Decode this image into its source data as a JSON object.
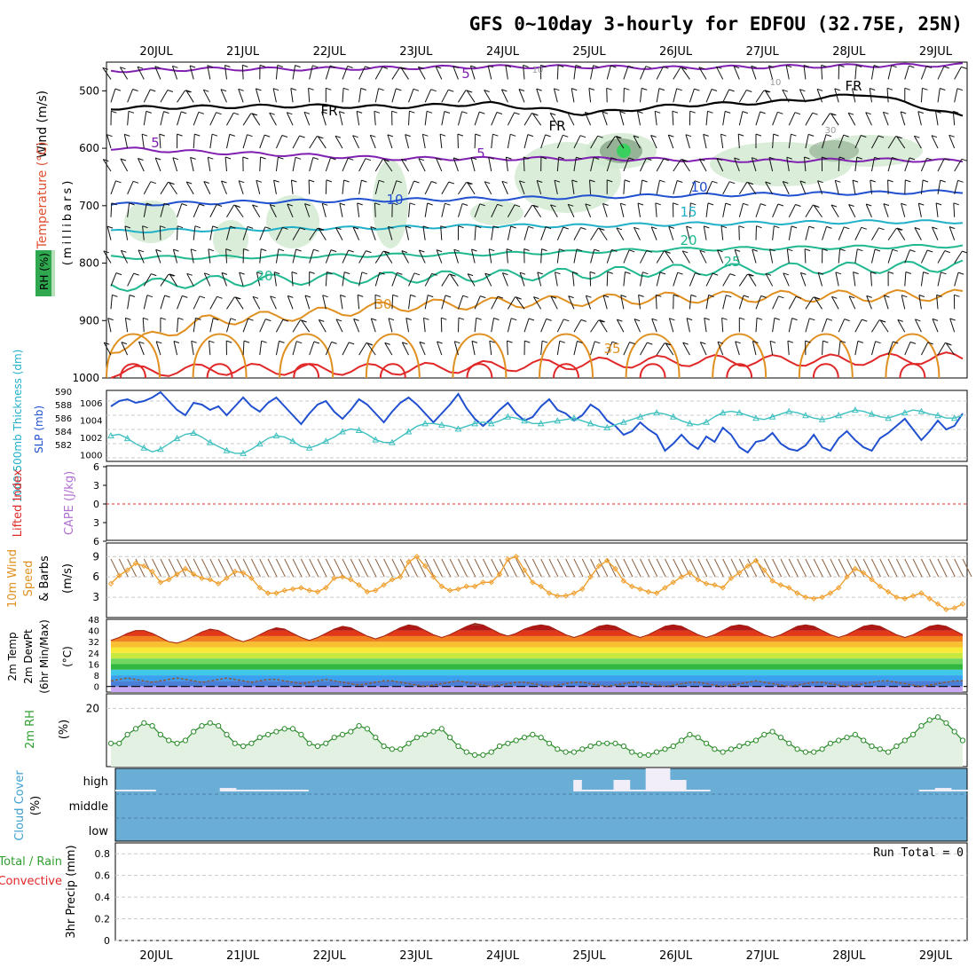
{
  "title": "GFS 0~10day 3-hourly for EDFOU (32.75E, 25N)",
  "days": [
    "20JUL",
    "21JUL",
    "22JUL",
    "23JUL",
    "24JUL",
    "25JUL",
    "26JUL",
    "27JUL",
    "28JUL",
    "29JUL"
  ],
  "colors": {
    "purple": "#8020b0",
    "blue": "#2050d0",
    "cyan": "#20b0c8",
    "teal": "#20b890",
    "orange": "#e09020",
    "red": "#e02828",
    "lightblue": "#40c0c0",
    "green": "#30a030",
    "cloud": "#6aaed6",
    "rh_fill": "#e3f1e3",
    "rh_line": "#2a8a2a",
    "wind": "#f0a030",
    "barb": "#8a6040"
  },
  "chart_data": [
    {
      "type": "contour",
      "panel": "upper-air",
      "ylabel_lines": [
        {
          "text": "Wind (m/s)",
          "color": "#000000"
        },
        {
          "text": "Temperature (°C)",
          "color": "#e05030"
        },
        {
          "text": "(millibars)",
          "color": "#000000"
        }
      ],
      "rh_label": "RH (%)",
      "y_ticks": [
        500,
        600,
        700,
        800,
        900,
        1000
      ],
      "ylim": [
        450,
        1000
      ],
      "contour_labels": [
        "5",
        "5",
        "5",
        "10",
        "10",
        "15",
        "20",
        "20",
        "25",
        "30",
        "35",
        "FR",
        "FR",
        "FR",
        "10",
        "10",
        "30"
      ],
      "isotherms": [
        {
          "label": "5",
          "color": "purple",
          "levels": [
            465,
            462,
            462,
            460,
            458,
            458,
            460,
            458,
            456,
            455
          ]
        },
        {
          "label": "FR",
          "color": "black",
          "levels": [
            530,
            528,
            526,
            528,
            522,
            540,
            525,
            520,
            505,
            545
          ]
        },
        {
          "label": "5",
          "color": "purple",
          "levels": [
            600,
            607,
            612,
            618,
            618,
            618,
            620,
            622,
            620,
            622
          ]
        },
        {
          "label": "10",
          "color": "blue",
          "levels": [
            698,
            695,
            692,
            690,
            688,
            685,
            682,
            680,
            678,
            675
          ]
        },
        {
          "label": "15",
          "color": "cyan",
          "levels": [
            745,
            742,
            740,
            738,
            735,
            735,
            732,
            730,
            728,
            728
          ]
        },
        {
          "label": "20",
          "color": "teal",
          "levels": [
            790,
            790,
            788,
            786,
            784,
            780,
            776,
            774,
            772,
            770
          ]
        },
        {
          "label": "25",
          "color": "teal",
          "levels": [
            840,
            832,
            828,
            825,
            822,
            818,
            812,
            810,
            808,
            805
          ]
        },
        {
          "label": "30",
          "color": "orange",
          "levels": [
            950,
            900,
            890,
            875,
            870,
            865,
            860,
            858,
            857,
            856
          ]
        },
        {
          "label": "35",
          "color": "red",
          "levels": [
            990,
            985,
            985,
            985,
            980,
            975,
            970,
            970,
            968,
            965
          ]
        }
      ]
    },
    {
      "type": "line",
      "panel": "slp-thickness",
      "ylabel_left": "1000-500mb Thickness (dm)",
      "ylabel_right": "SLP (mb)",
      "left_ticks": [
        "590",
        "588",
        "586",
        "584",
        "582"
      ],
      "right_ticks": [
        "1006",
        "1004",
        "1002",
        "1000"
      ],
      "ylim_slp": [
        999,
        1007
      ],
      "series": [
        {
          "name": "SLP (mb)",
          "color": "blue",
          "values": [
            1005.2,
            1005.8,
            1006.0,
            1005.6,
            1005.8,
            1006.2,
            1006.8,
            1005.8,
            1004.8,
            1004.2,
            1005.6,
            1005.4,
            1004.8,
            1005.2,
            1004.2,
            1005.2,
            1006.2,
            1005.2,
            1004.6,
            1005.6,
            1006.2,
            1005.2,
            1004.2,
            1003.2,
            1004.4,
            1005.4,
            1005.8,
            1004.6,
            1003.8,
            1004.8,
            1006.0,
            1005.4,
            1004.4,
            1003.4,
            1004.6,
            1005.6,
            1006.2,
            1005.4,
            1004.4,
            1003.4,
            1004.4,
            1005.4,
            1006.6,
            1005.0,
            1003.8,
            1003.0,
            1003.8,
            1004.8,
            1005.6,
            1004.4,
            1003.6,
            1004.0,
            1005.2,
            1006.0,
            1004.8,
            1004.4,
            1003.6,
            1004.2,
            1005.4,
            1004.8,
            1003.6,
            1003.0,
            1002.0,
            1002.4,
            1003.4,
            1002.6,
            1002.0,
            1000.2,
            1001.0,
            1002.0,
            1001.0,
            1000.4,
            1001.8,
            1001.2,
            1002.8,
            1002.0,
            1000.6,
            1000.0,
            1001.2,
            1001.4,
            1002.2,
            1001.0,
            1000.4,
            1000.2,
            1000.8,
            1002.0,
            1000.6,
            1000.2,
            1001.6,
            1002.4,
            1001.4,
            1000.6,
            1000.2,
            1001.6,
            1002.2,
            1003.0,
            1003.8,
            1002.6,
            1001.4,
            1002.4,
            1003.6,
            1002.6,
            1003.0,
            1004.4
          ]
        },
        {
          "name": "Thickness (dm)",
          "color": "lightblue",
          "values": [
            583.8,
            584.0,
            583.4,
            582.6,
            582.0,
            581.4,
            581.8,
            582.6,
            583.4,
            584.0,
            584.2,
            583.6,
            582.8,
            582.2,
            581.6,
            581.2,
            581.2,
            581.8,
            582.6,
            583.4,
            583.8,
            583.6,
            583.0,
            582.2,
            582.0,
            582.4,
            583.0,
            583.6,
            584.4,
            584.8,
            584.6,
            584.0,
            583.2,
            582.8,
            582.8,
            583.6,
            584.4,
            585.2,
            585.6,
            585.6,
            585.4,
            585.2,
            584.8,
            585.2,
            585.6,
            585.8,
            585.6,
            586.0,
            586.6,
            586.4,
            586.0,
            585.6,
            585.6,
            585.8,
            586.0,
            586.2,
            586.4,
            586.0,
            585.6,
            585.2,
            585.0,
            585.4,
            585.8,
            586.2,
            586.6,
            587.0,
            587.2,
            587.0,
            586.6,
            586.0,
            585.6,
            585.4,
            585.8,
            586.6,
            587.2,
            587.4,
            587.2,
            586.8,
            586.4,
            586.2,
            586.6,
            587.0,
            587.4,
            587.2,
            586.8,
            586.4,
            586.2,
            586.4,
            586.8,
            587.2,
            587.6,
            587.4,
            587.0,
            586.6,
            586.4,
            586.8,
            587.2,
            587.6,
            587.4,
            587.0,
            586.8,
            586.4,
            586.4,
            586.8
          ]
        }
      ]
    },
    {
      "type": "line",
      "panel": "cape-lifted-index",
      "ylabel_left": "Lifted Index",
      "ylabel_right": "CAPE (J/kg)",
      "ticks": [
        "6",
        "3",
        "0",
        "3",
        "6"
      ],
      "values_zero_line": 0
    },
    {
      "type": "line",
      "panel": "10m-wind",
      "ylabel_lines": [
        {
          "text": "10m Wind",
          "color": "#e09020"
        },
        {
          "text": "Speed",
          "color": "#e09020"
        },
        {
          "text": "& Barbs",
          "color": "#000000"
        },
        {
          "text": "(m/s)",
          "color": "#000000"
        }
      ],
      "y_ticks": [
        3,
        6,
        9
      ],
      "ylim": [
        0,
        11
      ],
      "series": [
        {
          "name": "Speed",
          "values": [
            5.0,
            6.2,
            7.0,
            8.0,
            7.6,
            6.8,
            5.2,
            5.6,
            6.4,
            7.2,
            6.4,
            5.8,
            5.6,
            5.0,
            5.8,
            6.8,
            6.6,
            5.8,
            4.4,
            3.6,
            3.6,
            4.0,
            4.2,
            4.4,
            4.0,
            3.8,
            4.4,
            5.8,
            6.0,
            5.6,
            4.8,
            3.8,
            4.0,
            4.8,
            5.6,
            6.0,
            8.2,
            9.0,
            7.6,
            6.0,
            4.6,
            4.0,
            4.2,
            4.6,
            4.6,
            5.2,
            5.2,
            6.4,
            8.6,
            9.0,
            7.0,
            5.2,
            4.6,
            3.6,
            3.2,
            3.2,
            3.6,
            4.2,
            6.0,
            7.6,
            8.4,
            7.2,
            5.4,
            4.6,
            4.2,
            3.8,
            3.6,
            4.4,
            5.2,
            6.0,
            6.6,
            5.6,
            5.0,
            4.8,
            4.4,
            5.8,
            6.6,
            7.6,
            8.4,
            7.0,
            5.4,
            4.8,
            4.4,
            3.6,
            3.0,
            2.8,
            3.0,
            3.6,
            4.4,
            6.0,
            7.2,
            6.6,
            5.6,
            4.6,
            3.8,
            3.0,
            2.8,
            3.2,
            3.6,
            2.8,
            2.0,
            1.2,
            1.4,
            2.0
          ]
        }
      ]
    },
    {
      "type": "area",
      "panel": "2m-temperature",
      "ylabel_lines": [
        {
          "text": "2m Temp",
          "color": "#000000"
        },
        {
          "text": "2m DewPt",
          "color": "#000000"
        },
        {
          "text": "(6hr Min/Max)",
          "color": "#000000"
        },
        {
          "text": "(°C)",
          "color": "#000000"
        }
      ],
      "y_ticks": [
        "48",
        "40",
        "32",
        "24",
        "16",
        "8",
        "0"
      ],
      "ylim": [
        -4,
        48
      ],
      "series": [
        {
          "name": "2m Temp",
          "values": [
            33,
            35,
            38,
            40,
            40,
            38,
            35,
            32,
            31,
            33,
            36,
            39,
            41,
            40,
            37,
            34,
            32,
            34,
            37,
            40,
            42,
            41,
            38,
            35,
            33,
            35,
            38,
            41,
            43,
            42,
            39,
            36,
            34,
            36,
            39,
            42,
            44,
            43,
            40,
            37,
            35,
            37,
            40,
            43,
            45,
            44,
            41,
            38,
            36,
            38,
            41,
            43,
            44,
            43,
            40,
            37,
            35,
            37,
            40,
            43,
            44,
            43,
            40,
            37,
            35,
            37,
            40,
            43,
            44,
            43,
            40,
            37,
            35,
            37,
            40,
            43,
            44,
            43,
            40,
            37,
            35,
            37,
            40,
            43,
            44,
            43,
            40,
            37,
            35,
            37,
            40,
            43,
            44,
            43,
            40,
            37,
            35,
            37,
            40,
            43,
            44,
            43,
            40,
            37
          ]
        },
        {
          "name": "2m DewPt",
          "values": [
            4,
            5,
            6,
            5,
            4,
            3,
            4,
            5,
            6,
            5,
            4,
            3,
            4,
            5,
            6,
            5,
            4,
            3,
            4,
            5,
            5,
            4,
            3,
            2,
            3,
            4,
            5,
            4,
            3,
            2,
            1,
            2,
            3,
            4,
            4,
            3,
            2,
            1,
            0,
            1,
            2,
            3,
            4,
            3,
            2,
            1,
            0,
            1,
            2,
            3,
            3,
            2,
            1,
            0,
            1,
            2,
            3,
            3,
            2,
            1,
            0,
            1,
            2,
            3,
            3,
            2,
            1,
            0,
            1,
            2,
            3,
            3,
            2,
            1,
            0,
            1,
            2,
            3,
            4,
            3,
            2,
            1,
            0,
            1,
            2,
            3,
            3,
            2,
            1,
            0,
            1,
            2,
            3,
            4,
            4,
            3,
            2,
            1,
            0,
            1,
            2,
            3,
            4,
            4
          ]
        }
      ]
    },
    {
      "type": "area",
      "panel": "2m-rh",
      "ylabel_lines": [
        {
          "text": "2m RH",
          "color": "#30a030"
        },
        {
          "text": "(%)",
          "color": "#000000"
        }
      ],
      "y_ticks": [
        "20"
      ],
      "ylim": [
        0,
        25
      ],
      "series": [
        {
          "name": "2m RH",
          "values": [
            8,
            8,
            11,
            13,
            15,
            14,
            11,
            9,
            8,
            9,
            12,
            14,
            15,
            14,
            11,
            8,
            7,
            8,
            10,
            11,
            12,
            13,
            13,
            11,
            8,
            7,
            8,
            10,
            11,
            12,
            14,
            13,
            10,
            7,
            6,
            6,
            8,
            10,
            11,
            12,
            13,
            10,
            7,
            5,
            4,
            4,
            5,
            7,
            8,
            9,
            10,
            11,
            10,
            8,
            6,
            5,
            5,
            6,
            7,
            8,
            8,
            8,
            7,
            5,
            4,
            4,
            5,
            6,
            7,
            9,
            11,
            10,
            8,
            6,
            5,
            6,
            7,
            8,
            9,
            11,
            12,
            10,
            8,
            6,
            5,
            5,
            6,
            8,
            9,
            10,
            11,
            9,
            7,
            6,
            5,
            7,
            9,
            11,
            14,
            16,
            17,
            15,
            12,
            9
          ]
        }
      ]
    },
    {
      "type": "bar",
      "panel": "cloud-cover",
      "ylabel_lines": [
        {
          "text": "Cloud Cover",
          "color": "#40a0d0"
        },
        {
          "text": "(%)",
          "color": "#000000"
        }
      ],
      "row_labels": [
        "high",
        "middle",
        "low"
      ],
      "series": [
        {
          "name": "high",
          "values": [
            3,
            3,
            3,
            3,
            3,
            0,
            0,
            0,
            0,
            0,
            0,
            0,
            0,
            6,
            6,
            3,
            3,
            3,
            3,
            3,
            3,
            3,
            3,
            3,
            0,
            0,
            0,
            0,
            0,
            0,
            0,
            0,
            0,
            0,
            0,
            0,
            0,
            0,
            0,
            0,
            0,
            0,
            0,
            0,
            0,
            0,
            0,
            0,
            0,
            0,
            0,
            0,
            0,
            0,
            0,
            0,
            0,
            20,
            3,
            3,
            3,
            3,
            20,
            20,
            3,
            3,
            40,
            40,
            40,
            20,
            20,
            3,
            3,
            3,
            0,
            0,
            0,
            0,
            0,
            0,
            0,
            0,
            0,
            0,
            0,
            0,
            0,
            0,
            0,
            0,
            0,
            0,
            0,
            0,
            0,
            0,
            0,
            0,
            0,
            0,
            3,
            3,
            6,
            6,
            3,
            3
          ]
        }
      ]
    },
    {
      "type": "bar",
      "panel": "precipitation",
      "ylabel_lines": [
        {
          "text": "3hr Precip (mm)",
          "color": "#000000"
        },
        {
          "text": "Total / Rain",
          "color": "#30a030"
        },
        {
          "text": "Convective",
          "color": "#e02828"
        }
      ],
      "y_ticks": [
        "0",
        "0.2",
        "0.4",
        "0.6",
        "0.8"
      ],
      "ylim": [
        0,
        0.9
      ],
      "run_total": "Run Total = 0",
      "values": []
    }
  ]
}
